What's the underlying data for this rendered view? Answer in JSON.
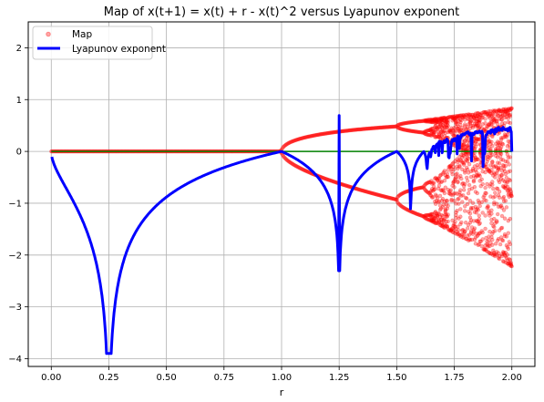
{
  "chart_data": {
    "type": "scatter",
    "title": "Map of x(t+1) = x(t) + r - x(t)^2 versus Lyapunov exponent",
    "xlabel": "r",
    "ylabel": "",
    "xlim": [
      -0.1,
      2.1
    ],
    "ylim": [
      -4.15,
      2.5
    ],
    "xticks": [
      0.0,
      0.25,
      0.5,
      0.75,
      1.0,
      1.25,
      1.5,
      1.75,
      2.0
    ],
    "xtick_labels": [
      "0.00",
      "0.25",
      "0.50",
      "0.75",
      "1.00",
      "1.25",
      "1.50",
      "1.75",
      "2.00"
    ],
    "yticks": [
      -4,
      -3,
      -2,
      -1,
      0,
      1,
      2
    ],
    "ytick_labels": [
      "−4",
      "−3",
      "−2",
      "−1",
      "0",
      "1",
      "2"
    ],
    "grid": true,
    "legend_position": "upper-left",
    "series": [
      {
        "name": "Map",
        "style": "markers",
        "color": "#ff0000",
        "description_of_shape": "period-doubling bifurcation: branches ±sqrt(r) for 0<r<1, period-2 branches 1±sqrt(r-1) for 1<r<1.5, period-4 and chaotic band up to r=2",
        "r_range": [
          0.0,
          2.0
        ]
      },
      {
        "name": "Lyapunov exponent",
        "style": "line",
        "color": "#0000ff",
        "description_of_shape": "ln|1-2sqrt(r)| for r<1, ln|4r-4|-style dips near r=1.25 and r≈1.56, positive chaotic values above r≈1.7"
      },
      {
        "name": "zero line",
        "style": "line",
        "color": "#008000",
        "x": [
          0.0,
          2.0
        ],
        "y": [
          0.0,
          0.0
        ]
      }
    ]
  }
}
